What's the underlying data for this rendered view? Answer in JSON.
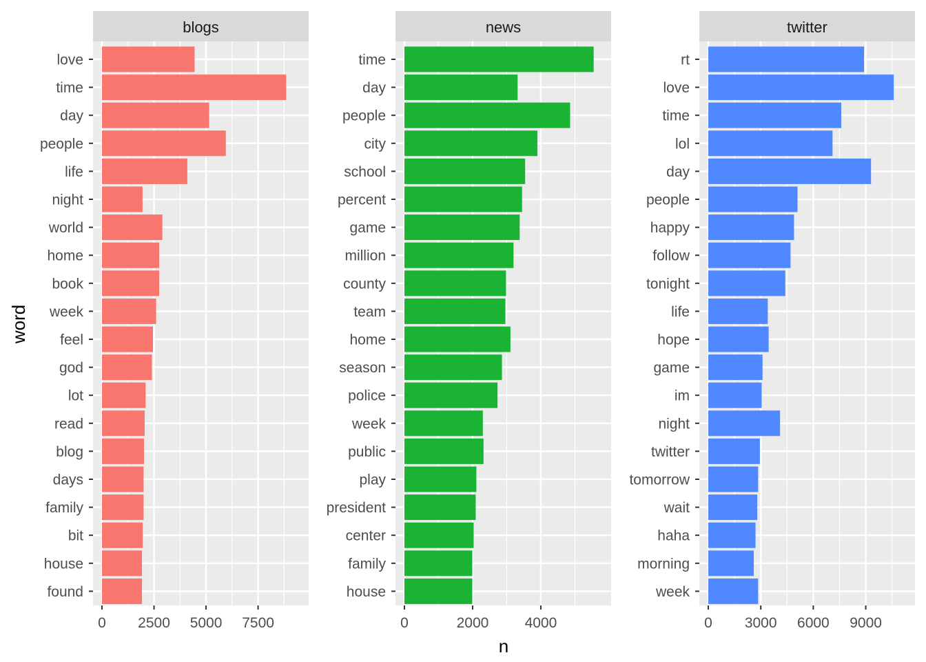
{
  "chart_data": {
    "type": "bar",
    "orientation": "horizontal",
    "facets": "columns",
    "xlabel": "n",
    "ylabel": "word",
    "grid": true,
    "panels": [
      {
        "title": "blogs",
        "color": "#F8766D",
        "xlim": [
          0,
          9500
        ],
        "xticks": [
          0,
          2500,
          5000,
          7500
        ],
        "tick_labels": [
          "0",
          "2500",
          "5000",
          "7500"
        ],
        "categories": [
          "love",
          "time",
          "day",
          "people",
          "life",
          "night",
          "world",
          "home",
          "book",
          "week",
          "feel",
          "god",
          "lot",
          "read",
          "blog",
          "days",
          "family",
          "bit",
          "house",
          "found"
        ],
        "values": [
          4450,
          8850,
          5150,
          5950,
          4100,
          1950,
          2900,
          2750,
          2750,
          2600,
          2450,
          2400,
          2100,
          2050,
          2020,
          2000,
          2000,
          1960,
          1920,
          1920
        ]
      },
      {
        "title": "news",
        "color": "#1BB333",
        "xlim": [
          0,
          5800
        ],
        "xticks": [
          0,
          2000,
          4000
        ],
        "tick_labels": [
          "0",
          "2000",
          "4000"
        ],
        "categories": [
          "time",
          "day",
          "people",
          "city",
          "school",
          "percent",
          "game",
          "million",
          "county",
          "team",
          "home",
          "season",
          "police",
          "week",
          "public",
          "play",
          "president",
          "center",
          "family",
          "house"
        ],
        "values": [
          5550,
          3320,
          4860,
          3900,
          3540,
          3450,
          3380,
          3200,
          2980,
          2960,
          3110,
          2860,
          2730,
          2300,
          2320,
          2110,
          2090,
          2030,
          1990,
          1990
        ]
      },
      {
        "title": "twitter",
        "color": "#5088FF",
        "xlim": [
          0,
          11300
        ],
        "xticks": [
          0,
          3000,
          6000,
          9000
        ],
        "tick_labels": [
          "0",
          "3000",
          "6000",
          "9000"
        ],
        "categories": [
          "rt",
          "love",
          "time",
          "lol",
          "day",
          "people",
          "happy",
          "follow",
          "tonight",
          "life",
          "hope",
          "game",
          "im",
          "night",
          "twitter",
          "tomorrow",
          "wait",
          "haha",
          "morning",
          "week"
        ],
        "values": [
          8900,
          10600,
          7600,
          7100,
          9300,
          5100,
          4900,
          4700,
          4400,
          3400,
          3450,
          3100,
          3050,
          4100,
          2950,
          2850,
          2800,
          2700,
          2600,
          2850
        ]
      }
    ]
  }
}
